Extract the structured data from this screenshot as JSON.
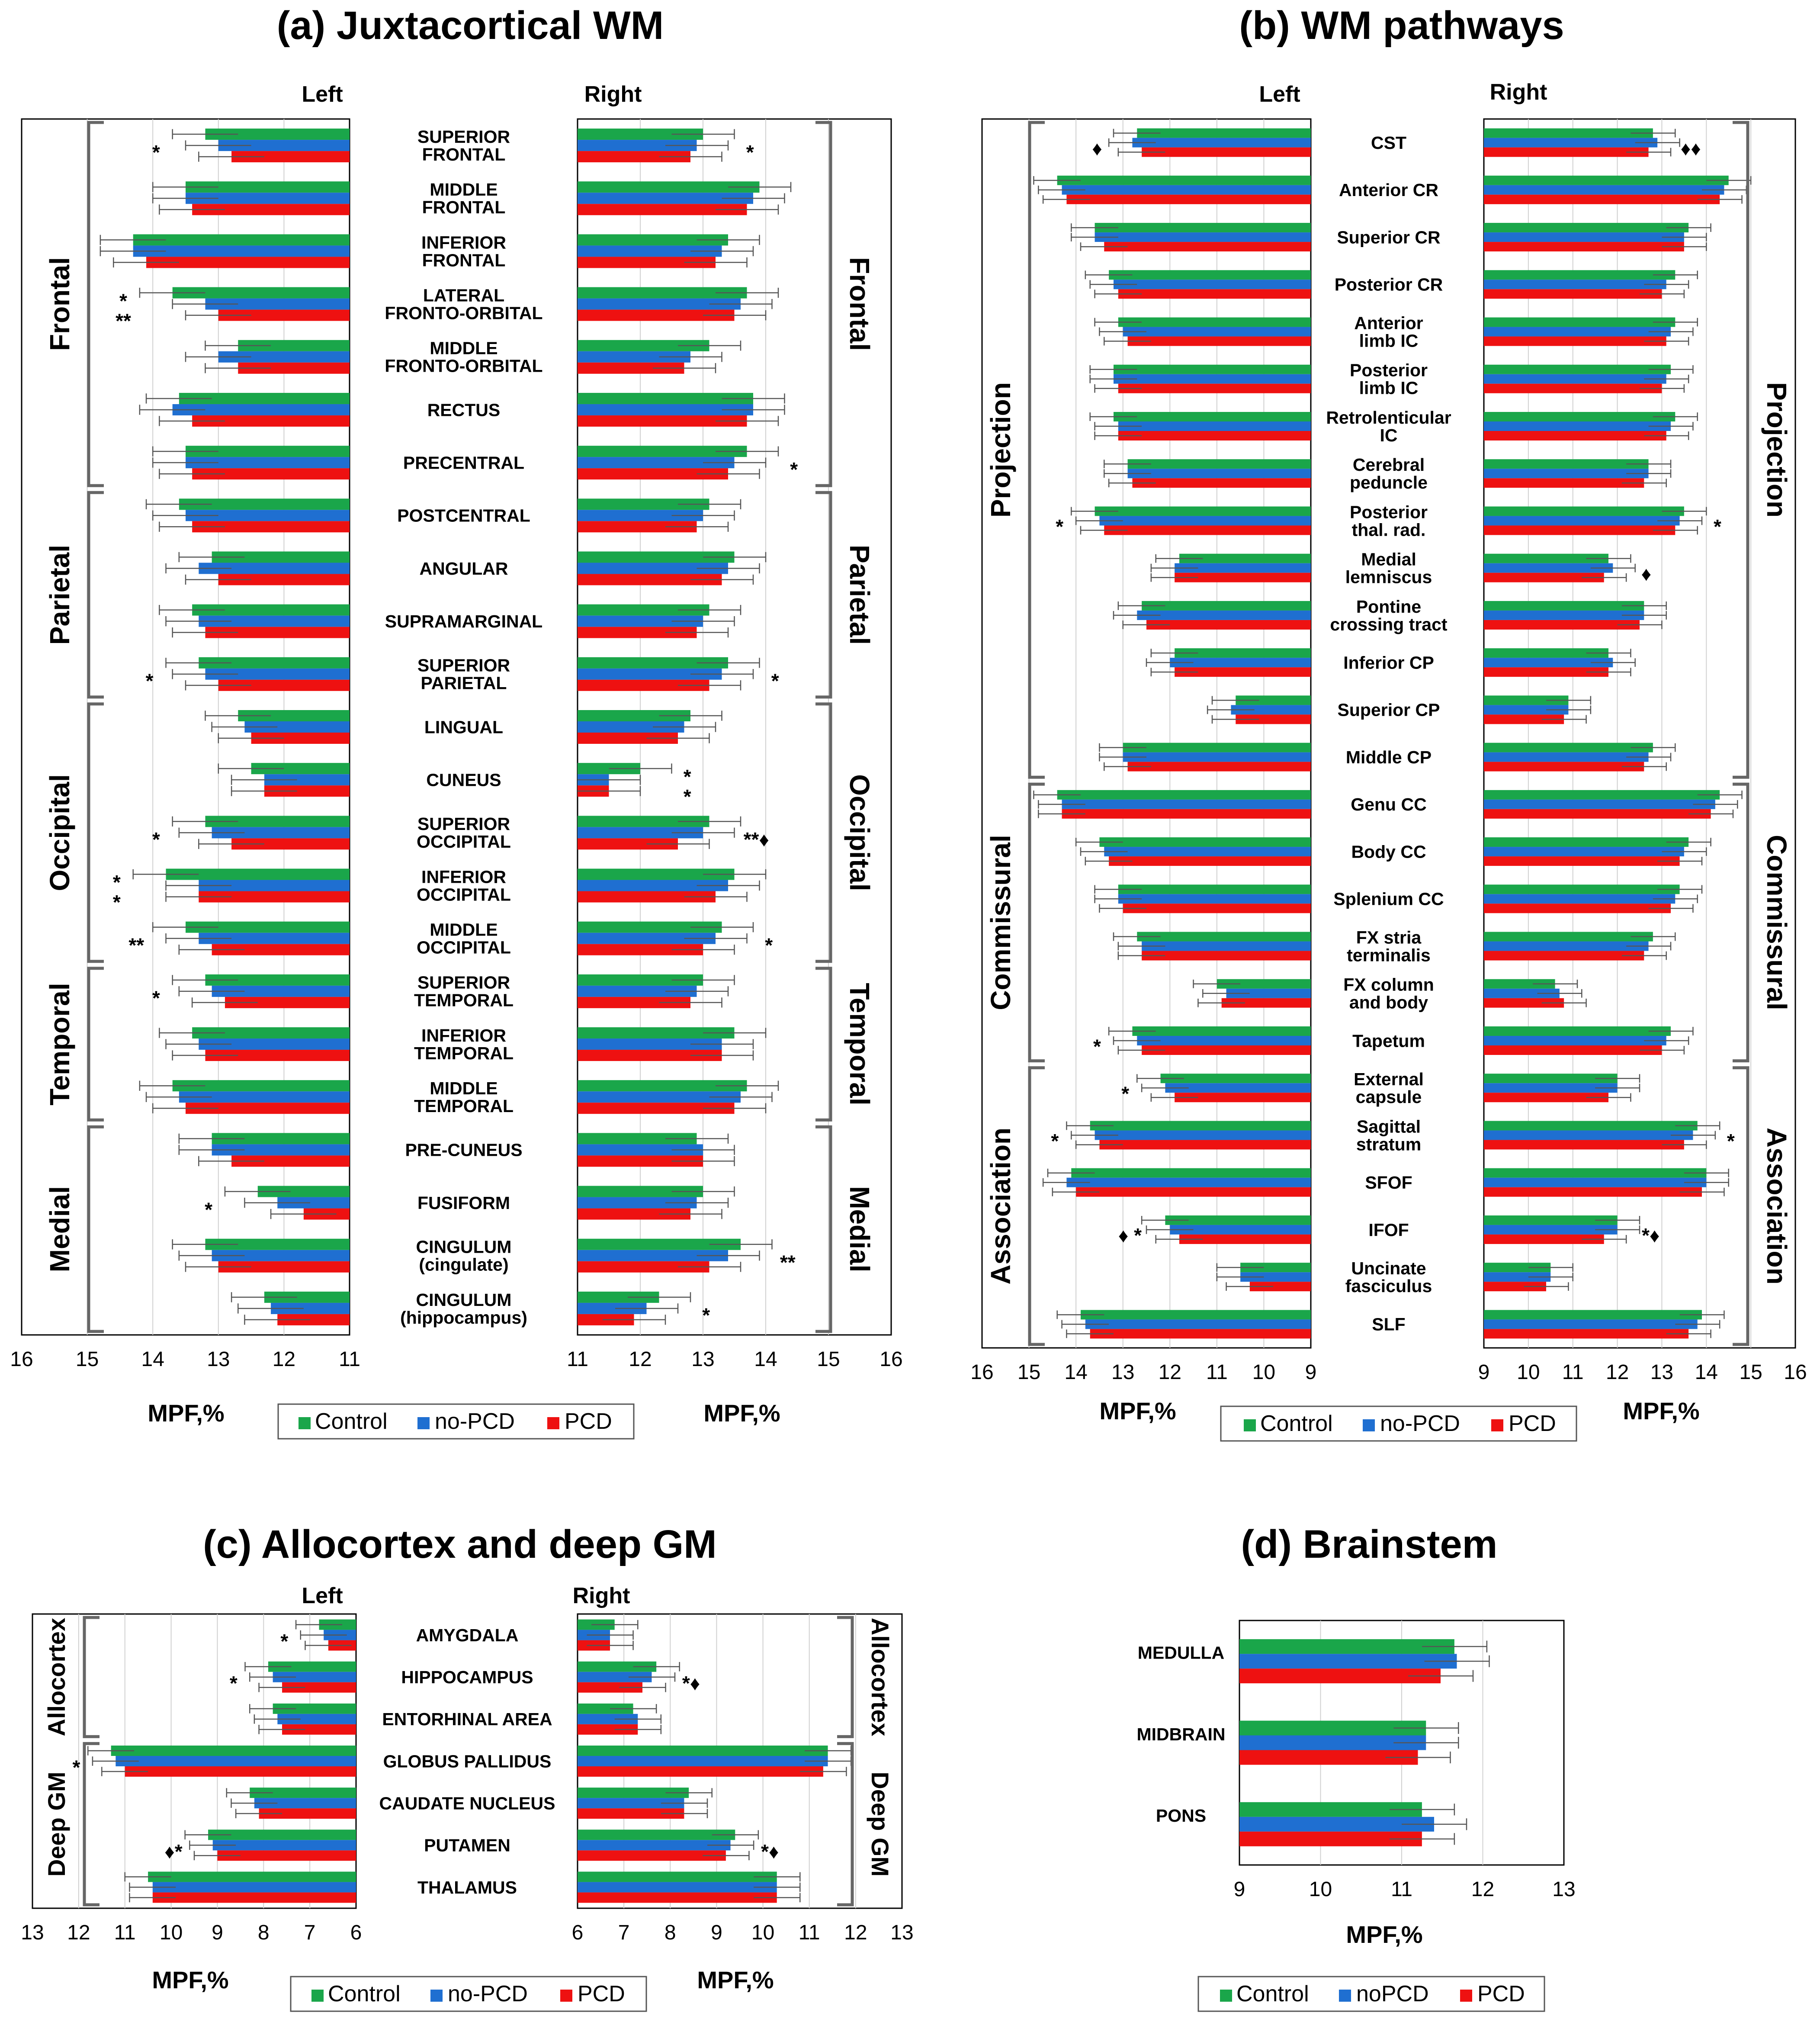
{
  "colors": {
    "control": "#1aa64a",
    "noPCD": "#1f6fd1",
    "PCD": "#ee1111"
  },
  "legend": {
    "control": "Control",
    "noPCD": "no-PCD",
    "PCD": "PCD",
    "noPCD_d": "noPCD"
  },
  "chart_data": [
    {
      "id": "a",
      "type": "bar",
      "title": "(a) Juxtacortical WM",
      "left_header": "Left",
      "right_header": "Right",
      "xlabel": "MPF,%",
      "left_xlim": [
        11,
        16
      ],
      "right_xlim": [
        11,
        16
      ],
      "left_ticks": [
        "16",
        "15",
        "14",
        "13",
        "12",
        "11"
      ],
      "right_ticks": [
        "11",
        "12",
        "13",
        "14",
        "15",
        "16"
      ],
      "series_names": [
        "Control",
        "no-PCD",
        "PCD"
      ],
      "groups": [
        "Frontal",
        "Parietal",
        "Occipital",
        "Temporal",
        "Medial"
      ],
      "regions": [
        {
          "name": "SUPERIOR\nFRONTAL",
          "left": [
            13.2,
            13.0,
            12.8
          ],
          "right": [
            13.0,
            12.9,
            12.8
          ],
          "left_mark": "*",
          "right_mark": "*"
        },
        {
          "name": "MIDDLE\nFRONTAL",
          "left": [
            13.5,
            13.5,
            13.4
          ],
          "right": [
            13.9,
            13.8,
            13.7
          ],
          "left_mark": "",
          "right_mark": ""
        },
        {
          "name": "INFERIOR\nFRONTAL",
          "left": [
            14.3,
            14.3,
            14.1
          ],
          "right": [
            13.4,
            13.3,
            13.2
          ],
          "left_mark": "",
          "right_mark": ""
        },
        {
          "name": "LATERAL\nFRONTO-ORBITAL",
          "left": [
            13.7,
            13.2,
            13.0
          ],
          "right": [
            13.7,
            13.6,
            13.5
          ],
          "left_mark": "*\n**",
          "right_mark": ""
        },
        {
          "name": "MIDDLE\nFRONTO-ORBITAL",
          "left": [
            12.7,
            13.0,
            12.7
          ],
          "right": [
            13.1,
            12.8,
            12.7
          ],
          "left_mark": "",
          "right_mark": ""
        },
        {
          "name": "RECTUS",
          "left": [
            13.6,
            13.7,
            13.4
          ],
          "right": [
            13.8,
            13.8,
            13.7
          ],
          "left_mark": "",
          "right_mark": ""
        },
        {
          "name": "PRECENTRAL",
          "left": [
            13.5,
            13.5,
            13.4
          ],
          "right": [
            13.7,
            13.5,
            13.4
          ],
          "left_mark": "",
          "right_mark": "*"
        },
        {
          "name": "POSTCENTRAL",
          "left": [
            13.6,
            13.5,
            13.4
          ],
          "right": [
            13.1,
            13.0,
            12.9
          ],
          "left_mark": "",
          "right_mark": ""
        },
        {
          "name": "ANGULAR",
          "left": [
            13.1,
            13.3,
            13.0
          ],
          "right": [
            13.5,
            13.4,
            13.3
          ],
          "left_mark": "",
          "right_mark": ""
        },
        {
          "name": "SUPRAMARGINAL",
          "left": [
            13.4,
            13.3,
            13.2
          ],
          "right": [
            13.1,
            13.0,
            12.9
          ],
          "left_mark": "",
          "right_mark": ""
        },
        {
          "name": "SUPERIOR\nPARIETAL",
          "left": [
            13.3,
            13.2,
            13.0
          ],
          "right": [
            13.4,
            13.3,
            13.1
          ],
          "left_mark": "*",
          "right_mark": "*"
        },
        {
          "name": "LINGUAL",
          "left": [
            12.7,
            12.6,
            12.5
          ],
          "right": [
            12.8,
            12.7,
            12.6
          ],
          "left_mark": "",
          "right_mark": ""
        },
        {
          "name": "CUNEUS",
          "left": [
            12.5,
            12.3,
            12.3
          ],
          "right": [
            12.0,
            11.5,
            11.5
          ],
          "left_mark": "",
          "right_mark": "*\n*"
        },
        {
          "name": "SUPERIOR\nOCCIPITAL",
          "left": [
            13.2,
            13.1,
            12.8
          ],
          "right": [
            13.1,
            13.0,
            12.6
          ],
          "left_mark": "*",
          "right_mark": "**♦"
        },
        {
          "name": "INFERIOR\nOCCIPITAL",
          "left": [
            13.8,
            13.3,
            13.3
          ],
          "right": [
            13.5,
            13.4,
            13.2
          ],
          "left_mark": "*\n*",
          "right_mark": ""
        },
        {
          "name": "MIDDLE\nOCCIPITAL",
          "left": [
            13.5,
            13.3,
            13.1
          ],
          "right": [
            13.3,
            13.2,
            13.0
          ],
          "left_mark": "**",
          "right_mark": "*"
        },
        {
          "name": "SUPERIOR\nTEMPORAL",
          "left": [
            13.2,
            13.1,
            12.9
          ],
          "right": [
            13.0,
            12.9,
            12.8
          ],
          "left_mark": "*",
          "right_mark": ""
        },
        {
          "name": "INFERIOR\nTEMPORAL",
          "left": [
            13.4,
            13.3,
            13.2
          ],
          "right": [
            13.5,
            13.3,
            13.3
          ],
          "left_mark": "",
          "right_mark": ""
        },
        {
          "name": "MIDDLE\nTEMPORAL",
          "left": [
            13.7,
            13.6,
            13.5
          ],
          "right": [
            13.7,
            13.6,
            13.5
          ],
          "left_mark": "",
          "right_mark": ""
        },
        {
          "name": "PRE-CUNEUS",
          "left": [
            13.1,
            13.1,
            12.8
          ],
          "right": [
            12.9,
            13.0,
            13.0
          ],
          "left_mark": "",
          "right_mark": ""
        },
        {
          "name": "FUSIFORM",
          "left": [
            12.4,
            12.1,
            11.7
          ],
          "right": [
            13.0,
            12.9,
            12.8
          ],
          "left_mark": "*",
          "right_mark": ""
        },
        {
          "name": "CINGULUM\n(cingulate)",
          "left": [
            13.2,
            13.1,
            13.0
          ],
          "right": [
            13.6,
            13.4,
            13.1
          ],
          "left_mark": "",
          "right_mark": "**"
        },
        {
          "name": "CINGULUM\n(hippocampus)",
          "left": [
            12.3,
            12.2,
            12.1
          ],
          "right": [
            12.3,
            12.1,
            11.9
          ],
          "left_mark": "",
          "right_mark": "*"
        }
      ]
    },
    {
      "id": "b",
      "type": "bar",
      "title": "(b) WM pathways",
      "left_header": "Left",
      "right_header": "Right",
      "xlabel": "MPF,%",
      "left_xlim": [
        9,
        16
      ],
      "right_xlim": [
        9,
        16
      ],
      "left_ticks": [
        "16",
        "15",
        "14",
        "13",
        "12",
        "11",
        "10",
        "9"
      ],
      "right_ticks": [
        "9",
        "10",
        "11",
        "12",
        "13",
        "14",
        "15",
        "16"
      ],
      "series_names": [
        "Control",
        "no-PCD",
        "PCD"
      ],
      "groups": [
        "Projection",
        "Commissural",
        "Association"
      ],
      "regions": [
        {
          "name": "CST",
          "left": [
            12.7,
            12.8,
            12.6
          ],
          "right": [
            12.8,
            12.9,
            12.7
          ],
          "left_mark": "♦",
          "right_mark": "♦♦"
        },
        {
          "name": "Anterior CR",
          "left": [
            14.4,
            14.3,
            14.2
          ],
          "right": [
            14.5,
            14.4,
            14.3
          ],
          "left_mark": "",
          "right_mark": ""
        },
        {
          "name": "Superior CR",
          "left": [
            13.6,
            13.6,
            13.4
          ],
          "right": [
            13.6,
            13.5,
            13.5
          ],
          "left_mark": "",
          "right_mark": ""
        },
        {
          "name": "Posterior CR",
          "left": [
            13.3,
            13.2,
            13.1
          ],
          "right": [
            13.3,
            13.1,
            13.0
          ],
          "left_mark": "",
          "right_mark": ""
        },
        {
          "name": "Anterior\nlimb IC",
          "left": [
            13.1,
            13.0,
            12.9
          ],
          "right": [
            13.3,
            13.2,
            13.1
          ],
          "left_mark": "",
          "right_mark": ""
        },
        {
          "name": "Posterior\nlimb IC",
          "left": [
            13.2,
            13.2,
            13.1
          ],
          "right": [
            13.2,
            13.1,
            13.0
          ],
          "left_mark": "",
          "right_mark": ""
        },
        {
          "name": "Retrolenticular\nIC",
          "left": [
            13.2,
            13.1,
            13.1
          ],
          "right": [
            13.3,
            13.2,
            13.1
          ],
          "left_mark": "",
          "right_mark": ""
        },
        {
          "name": "Cerebral\npeduncle",
          "left": [
            12.9,
            12.9,
            12.8
          ],
          "right": [
            12.7,
            12.7,
            12.6
          ],
          "left_mark": "",
          "right_mark": ""
        },
        {
          "name": "Posterior\nthal. rad.",
          "left": [
            13.6,
            13.5,
            13.4
          ],
          "right": [
            13.5,
            13.4,
            13.3
          ],
          "left_mark": "*",
          "right_mark": "*"
        },
        {
          "name": "Medial\nlemniscus",
          "left": [
            11.8,
            11.9,
            11.9
          ],
          "right": [
            11.8,
            11.9,
            11.7
          ],
          "left_mark": "",
          "right_mark": "♦"
        },
        {
          "name": "Pontine\ncrossing tract",
          "left": [
            12.6,
            12.7,
            12.5
          ],
          "right": [
            12.6,
            12.6,
            12.5
          ],
          "left_mark": "",
          "right_mark": ""
        },
        {
          "name": "Inferior CP",
          "left": [
            11.9,
            12.0,
            11.9
          ],
          "right": [
            11.8,
            11.9,
            11.8
          ],
          "left_mark": "",
          "right_mark": ""
        },
        {
          "name": "Superior CP",
          "left": [
            10.6,
            10.7,
            10.6
          ],
          "right": [
            10.9,
            10.9,
            10.8
          ],
          "left_mark": "",
          "right_mark": ""
        },
        {
          "name": "Middle CP",
          "left": [
            13.0,
            13.0,
            12.9
          ],
          "right": [
            12.8,
            12.7,
            12.6
          ],
          "left_mark": "",
          "right_mark": ""
        },
        {
          "name": "Genu CC",
          "left": [
            14.4,
            14.3,
            14.3
          ],
          "right": [
            14.3,
            14.2,
            14.1
          ],
          "left_mark": "",
          "right_mark": ""
        },
        {
          "name": "Body CC",
          "left": [
            13.5,
            13.4,
            13.3
          ],
          "right": [
            13.6,
            13.5,
            13.4
          ],
          "left_mark": "",
          "right_mark": ""
        },
        {
          "name": "Splenium CC",
          "left": [
            13.1,
            13.1,
            13.0
          ],
          "right": [
            13.4,
            13.3,
            13.2
          ],
          "left_mark": "",
          "right_mark": ""
        },
        {
          "name": "FX stria\nterminalis",
          "left": [
            12.7,
            12.6,
            12.6
          ],
          "right": [
            12.8,
            12.7,
            12.6
          ],
          "left_mark": "",
          "right_mark": ""
        },
        {
          "name": "FX column\nand body",
          "left": [
            11.0,
            10.8,
            10.9
          ],
          "right": [
            10.6,
            10.7,
            10.8
          ],
          "left_mark": "",
          "right_mark": ""
        },
        {
          "name": "Tapetum",
          "left": [
            12.8,
            12.7,
            12.6
          ],
          "right": [
            13.2,
            13.1,
            13.0
          ],
          "left_mark": "*",
          "right_mark": ""
        },
        {
          "name": "External\ncapsule",
          "left": [
            12.2,
            12.1,
            11.9
          ],
          "right": [
            12.0,
            12.0,
            11.8
          ],
          "left_mark": "*",
          "right_mark": ""
        },
        {
          "name": "Sagittal\nstratum",
          "left": [
            13.7,
            13.6,
            13.5
          ],
          "right": [
            13.8,
            13.7,
            13.5
          ],
          "left_mark": "*",
          "right_mark": "*"
        },
        {
          "name": "SFOF",
          "left": [
            14.1,
            14.2,
            14.0
          ],
          "right": [
            14.0,
            14.0,
            13.9
          ],
          "left_mark": "",
          "right_mark": ""
        },
        {
          "name": "IFOF",
          "left": [
            12.1,
            12.0,
            11.8
          ],
          "right": [
            12.0,
            12.0,
            11.7
          ],
          "left_mark": "♦ *",
          "right_mark": "*♦"
        },
        {
          "name": "Uncinate\nfasciculus",
          "left": [
            10.5,
            10.5,
            10.3
          ],
          "right": [
            10.5,
            10.5,
            10.4
          ],
          "left_mark": "",
          "right_mark": ""
        },
        {
          "name": "SLF",
          "left": [
            13.9,
            13.8,
            13.7
          ],
          "right": [
            13.9,
            13.8,
            13.6
          ],
          "left_mark": "",
          "right_mark": ""
        }
      ]
    },
    {
      "id": "c",
      "type": "bar",
      "title": "(c) Allocortex and deep GM",
      "left_header": "Left",
      "right_header": "Right",
      "xlabel": "MPF,%",
      "left_xlim": [
        6,
        13
      ],
      "right_xlim": [
        6,
        13
      ],
      "left_ticks": [
        "13",
        "12",
        "11",
        "10",
        "9",
        "8",
        "7",
        "6"
      ],
      "right_ticks": [
        "6",
        "7",
        "8",
        "9",
        "10",
        "11",
        "12",
        "13"
      ],
      "series_names": [
        "Control",
        "no-PCD",
        "PCD"
      ],
      "groups": [
        "Allocortex",
        "Deep GM"
      ],
      "regions": [
        {
          "name": "AMYGDALA",
          "left": [
            6.8,
            6.7,
            6.6
          ],
          "right": [
            6.8,
            6.7,
            6.7
          ],
          "left_mark": "*",
          "right_mark": ""
        },
        {
          "name": "HIPPOCAMPUS",
          "left": [
            7.9,
            7.8,
            7.6
          ],
          "right": [
            7.7,
            7.6,
            7.4
          ],
          "left_mark": "*",
          "right_mark": "*♦"
        },
        {
          "name": "ENTORHINAL AREA",
          "left": [
            7.8,
            7.7,
            7.6
          ],
          "right": [
            7.2,
            7.3,
            7.3
          ],
          "left_mark": "",
          "right_mark": ""
        },
        {
          "name": "GLOBUS PALLIDUS",
          "left": [
            11.3,
            11.2,
            11.0
          ],
          "right": [
            11.4,
            11.4,
            11.3
          ],
          "left_mark": "*",
          "right_mark": ""
        },
        {
          "name": "CAUDATE NUCLEUS",
          "left": [
            8.3,
            8.2,
            8.1
          ],
          "right": [
            8.4,
            8.3,
            8.3
          ],
          "left_mark": "",
          "right_mark": ""
        },
        {
          "name": "PUTAMEN",
          "left": [
            9.2,
            9.1,
            9.0
          ],
          "right": [
            9.4,
            9.3,
            9.2
          ],
          "left_mark": "♦*",
          "right_mark": "*♦"
        },
        {
          "name": "THALAMUS",
          "left": [
            10.5,
            10.4,
            10.4
          ],
          "right": [
            10.3,
            10.3,
            10.3
          ],
          "left_mark": "",
          "right_mark": ""
        }
      ]
    },
    {
      "id": "d",
      "type": "bar",
      "title": "(d) Brainstem",
      "xlabel": "MPF,%",
      "xlim": [
        9,
        13
      ],
      "ticks": [
        "9",
        "10",
        "11",
        "12",
        "13"
      ],
      "series_names": [
        "Control",
        "noPCD",
        "PCD"
      ],
      "regions": [
        {
          "name": "MEDULLA",
          "values": [
            11.65,
            11.68,
            11.48
          ]
        },
        {
          "name": "MIDBRAIN",
          "values": [
            11.3,
            11.3,
            11.2
          ]
        },
        {
          "name": "PONS",
          "values": [
            11.25,
            11.4,
            11.25
          ]
        }
      ]
    }
  ]
}
